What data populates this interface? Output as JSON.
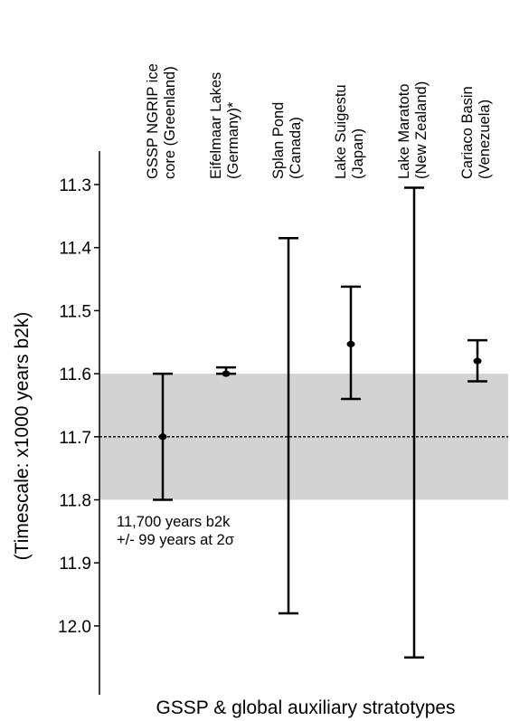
{
  "chart_data": {
    "type": "errorbar",
    "title": "",
    "xlabel": "GSSP & global auxiliary stratotypes",
    "ylabel": "(Timescale: x1000 years b2k)",
    "ylim": [
      11.25,
      12.1
    ],
    "y_inverted": true,
    "yticks": [
      "11.3",
      "11.4",
      "11.5",
      "11.6",
      "11.7",
      "11.8",
      "11.9",
      "12.0"
    ],
    "grid": false,
    "shaded_band": {
      "from": 11.6,
      "to": 11.8,
      "color": "#d3d3d3"
    },
    "reference_line": {
      "y": 11.7,
      "style": "dotted"
    },
    "categories": [
      {
        "line1": "GSSP NGRIP ice",
        "line2": "core (Greenland)"
      },
      {
        "line1": "Eifelmaar Lakes",
        "line2": "(Germany)*"
      },
      {
        "line1": "Splan Pond",
        "line2": "(Canada)"
      },
      {
        "line1": "Lake Suigestu",
        "line2": "(Japan)"
      },
      {
        "line1": "Lake Maratoto",
        "line2": "(New Zealand)"
      },
      {
        "line1": "Cariaco Basin",
        "line2": "(Venezuela)"
      }
    ],
    "values": [
      {
        "value": 11.7,
        "low": 11.6,
        "high": 11.8,
        "marker": true
      },
      {
        "value": 11.6,
        "low": 11.59,
        "high": 11.6,
        "marker": true
      },
      {
        "value": null,
        "low": 11.385,
        "high": 11.98,
        "marker": false
      },
      {
        "value": 11.553,
        "low": 11.462,
        "high": 11.64,
        "marker": true
      },
      {
        "value": null,
        "low": 11.305,
        "high": 12.05,
        "marker": false
      },
      {
        "value": 11.58,
        "low": 11.547,
        "high": 11.612,
        "marker": true
      }
    ],
    "annotation": {
      "line1": "11,700 years b2k",
      "line2": "+/- 99 years at 2σ"
    }
  }
}
